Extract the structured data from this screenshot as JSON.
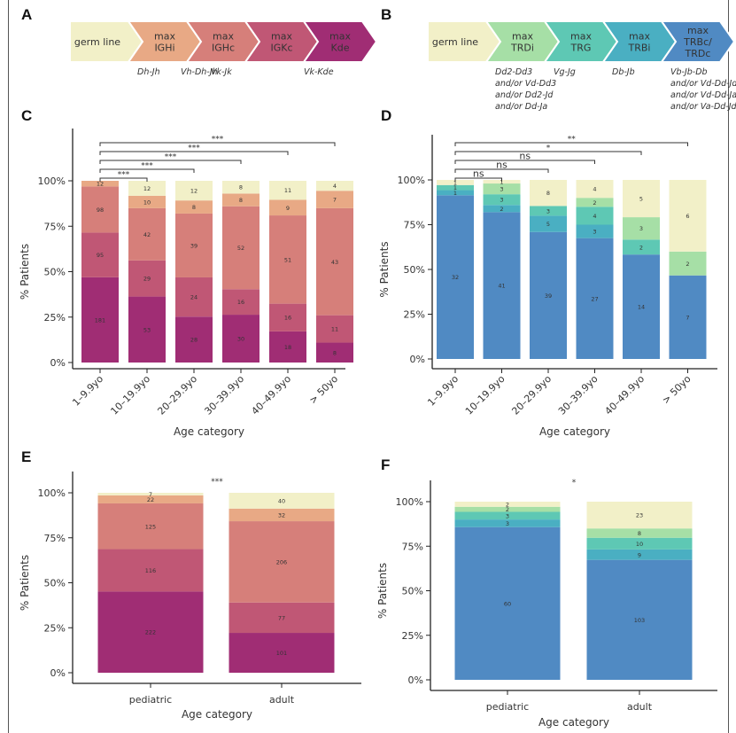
{
  "panels": {
    "A": {
      "letter": "A",
      "steps": [
        {
          "label": [
            "germ line"
          ],
          "color": "#f2f0c8"
        },
        {
          "label": [
            "max",
            "IGHi"
          ],
          "color": "#e8a985"
        },
        {
          "label": [
            "max",
            "IGHc"
          ],
          "color": "#d67f7a"
        },
        {
          "label": [
            "max",
            "IGKc"
          ],
          "color": "#c05775"
        },
        {
          "label": [
            "max",
            "Kde"
          ],
          "color": "#a02d74"
        }
      ],
      "rearrangements": [
        [
          "Dh-Jh"
        ],
        [
          "Vh-Dh-Jh"
        ],
        [
          "Vk-Jk"
        ],
        [
          "Vk-Kde"
        ]
      ]
    },
    "B": {
      "letter": "B",
      "steps": [
        {
          "label": [
            "germ line"
          ],
          "color": "#f2f0c8"
        },
        {
          "label": [
            "max",
            "TRDi"
          ],
          "color": "#a6dfa6"
        },
        {
          "label": [
            "max",
            "TRG"
          ],
          "color": "#5ec8b4"
        },
        {
          "label": [
            "max",
            "TRBi"
          ],
          "color": "#4aafc2"
        },
        {
          "label": [
            "max",
            "TRBc/",
            "TRDc"
          ],
          "color": "#508ac3"
        }
      ],
      "rearrangements": [
        [
          "Dd2-Dd3",
          "and/or Vd-Dd3",
          "and/or Dd2-Jd",
          "and/or Dd-Ja"
        ],
        [
          "Vg-Jg"
        ],
        [
          "Db-Jb"
        ],
        [
          "Vb-Jb-Db",
          "and/or Vd-Dd-Jd",
          "and/or Vd-Dd-Ja",
          "and/or Va-Dd-Jd"
        ]
      ]
    }
  },
  "chart_data": [
    {
      "panel": "C",
      "type": "bar",
      "stacked": true,
      "normalized": true,
      "xlabel": "Age category",
      "ylabel": "% Patients",
      "ylim": [
        0,
        100
      ],
      "yticks": [
        "0%",
        "25%",
        "50%",
        "75%",
        "100%"
      ],
      "categories": [
        "1–9.9yo",
        "10–19.9yo",
        "20–29.9yo",
        "30–39.9yo",
        "40–49.9yo",
        "> 50yo"
      ],
      "series": [
        {
          "name": "max Kde",
          "color": "#a02d74",
          "values": [
            181,
            53,
            28,
            30,
            18,
            8
          ]
        },
        {
          "name": "max IGKc",
          "color": "#c05775",
          "values": [
            95,
            29,
            24,
            16,
            16,
            11
          ]
        },
        {
          "name": "max IGHc",
          "color": "#d67f7a",
          "values": [
            98,
            42,
            39,
            52,
            51,
            43
          ]
        },
        {
          "name": "max IGHi",
          "color": "#e8a985",
          "values": [
            12,
            10,
            8,
            8,
            9,
            7
          ]
        },
        {
          "name": "germ line",
          "color": "#f2f0c8",
          "values": [
            0,
            12,
            12,
            8,
            11,
            4
          ]
        }
      ],
      "significance": [
        {
          "from": 0,
          "to": 1,
          "label": "***"
        },
        {
          "from": 0,
          "to": 2,
          "label": "***"
        },
        {
          "from": 0,
          "to": 3,
          "label": "***"
        },
        {
          "from": 0,
          "to": 4,
          "label": "***"
        },
        {
          "from": 0,
          "to": 5,
          "label": "***"
        }
      ]
    },
    {
      "panel": "D",
      "type": "bar",
      "stacked": true,
      "normalized": true,
      "xlabel": "Age category",
      "ylabel": "% Patients",
      "ylim": [
        0,
        100
      ],
      "yticks": [
        "0%",
        "25%",
        "50%",
        "75%",
        "100%"
      ],
      "categories": [
        "1–9.9yo",
        "10–19.9yo",
        "20–29.9yo",
        "30–39.9yo",
        "40–49.9yo",
        "> 50yo"
      ],
      "series": [
        {
          "name": "max TRBc/TRDc",
          "color": "#508ac3",
          "values": [
            32,
            41,
            39,
            27,
            14,
            7
          ]
        },
        {
          "name": "max TRBi",
          "color": "#4aafc2",
          "values": [
            1,
            2,
            5,
            3,
            0,
            0
          ]
        },
        {
          "name": "max TRG",
          "color": "#5ec8b4",
          "values": [
            1,
            3,
            3,
            4,
            2,
            0
          ]
        },
        {
          "name": "max TRDi",
          "color": "#a6dfa6",
          "values": [
            0,
            3,
            0,
            2,
            3,
            2
          ]
        },
        {
          "name": "germ line",
          "color": "#f2f0c8",
          "values": [
            1,
            1,
            8,
            4,
            5,
            6
          ]
        }
      ],
      "significance": [
        {
          "from": 0,
          "to": 1,
          "label": "ns"
        },
        {
          "from": 0,
          "to": 2,
          "label": "ns"
        },
        {
          "from": 0,
          "to": 3,
          "label": "ns"
        },
        {
          "from": 0,
          "to": 4,
          "label": "*"
        },
        {
          "from": 0,
          "to": 5,
          "label": "**"
        }
      ]
    },
    {
      "panel": "E",
      "type": "bar",
      "stacked": true,
      "normalized": true,
      "xlabel": "Age category",
      "ylabel": "% Patients",
      "ylim": [
        0,
        100
      ],
      "yticks": [
        "0%",
        "25%",
        "50%",
        "75%",
        "100%"
      ],
      "categories": [
        "pediatric",
        "adult"
      ],
      "series": [
        {
          "name": "max Kde",
          "color": "#a02d74",
          "values": [
            222,
            101
          ]
        },
        {
          "name": "max IGKc",
          "color": "#c05775",
          "values": [
            116,
            77
          ]
        },
        {
          "name": "max IGHc",
          "color": "#d67f7a",
          "values": [
            125,
            206
          ]
        },
        {
          "name": "max IGHi",
          "color": "#e8a985",
          "values": [
            22,
            32
          ]
        },
        {
          "name": "germ line",
          "color": "#f2f0c8",
          "values": [
            7,
            40
          ]
        }
      ],
      "significance": [
        {
          "label": "***"
        }
      ]
    },
    {
      "panel": "F",
      "type": "bar",
      "stacked": true,
      "normalized": true,
      "xlabel": "Age category",
      "ylabel": "% Patients",
      "ylim": [
        0,
        100
      ],
      "yticks": [
        "0%",
        "25%",
        "50%",
        "75%",
        "100%"
      ],
      "categories": [
        "pediatric",
        "adult"
      ],
      "series": [
        {
          "name": "max TRBc/TRDc",
          "color": "#508ac3",
          "values": [
            60,
            103
          ]
        },
        {
          "name": "max TRBi",
          "color": "#4aafc2",
          "values": [
            3,
            9
          ]
        },
        {
          "name": "max TRG",
          "color": "#5ec8b4",
          "values": [
            3,
            10
          ]
        },
        {
          "name": "max TRDi",
          "color": "#a6dfa6",
          "values": [
            2,
            8
          ]
        },
        {
          "name": "germ line",
          "color": "#f2f0c8",
          "values": [
            2,
            23
          ]
        }
      ],
      "significance": [
        {
          "label": "*"
        }
      ]
    }
  ]
}
